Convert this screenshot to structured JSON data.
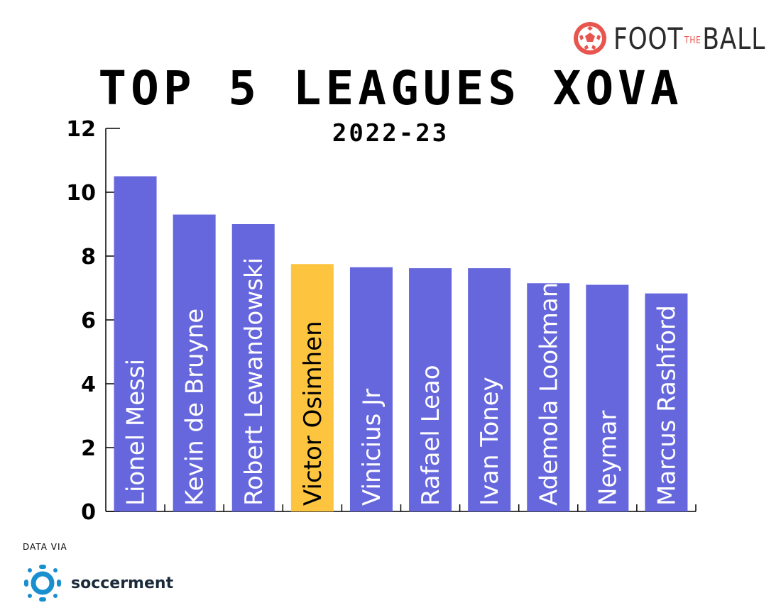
{
  "brand": {
    "prefix": "FOOT",
    "middle": "THE",
    "suffix": "BALL",
    "accent": "#e8554e"
  },
  "source": {
    "caption": "DATA VIA",
    "name": "soccerment",
    "color": "#1a8fd0"
  },
  "chart_data": {
    "type": "bar",
    "title": "TOP 5 LEAGUES XOVA",
    "subtitle": "2022-23",
    "categories": [
      "Lionel Messi",
      "Kevin de Bruyne",
      "Robert Lewandowski",
      "Victor Osimhen",
      "Vinicius Jr",
      "Rafael Leao",
      "Ivan Toney",
      "Ademola Lookman",
      "Neymar",
      "Marcus Rashford"
    ],
    "values": [
      10.5,
      9.3,
      9.0,
      7.75,
      7.65,
      7.62,
      7.62,
      7.15,
      7.1,
      6.83
    ],
    "highlight": "Victor Osimhen",
    "ylim": [
      0,
      12
    ],
    "yticks": [
      0,
      2,
      4,
      6,
      8,
      10,
      12
    ],
    "bar_color": "#6666dd",
    "highlight_color": "#fdc53f",
    "grid": false
  }
}
